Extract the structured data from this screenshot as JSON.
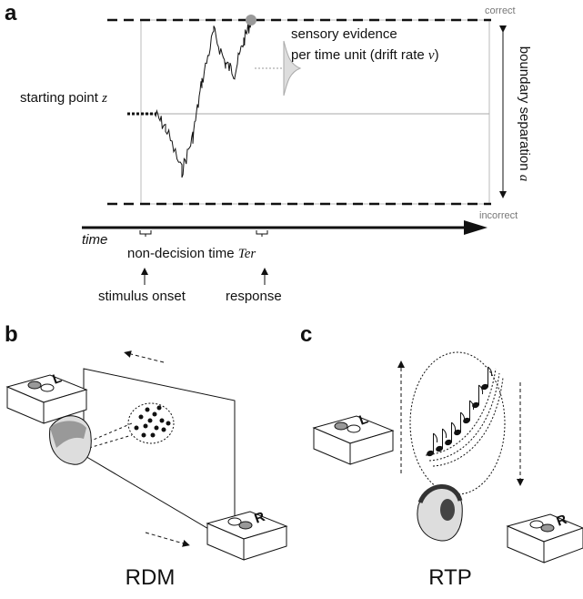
{
  "panel_a": {
    "label": "a",
    "upper_boundary": "correct",
    "lower_boundary": "incorrect",
    "starting_point": {
      "text": "starting point",
      "symbol": "z"
    },
    "drift": {
      "line1": "sensory evidence",
      "line2": "per time unit (drift rate",
      "symbol": "v",
      "close": ")"
    },
    "boundary_separation": {
      "text": "boundary separation",
      "symbol": "a"
    },
    "time_axis": "time",
    "non_decision": {
      "text": "non-decision time",
      "symbol": "Ter"
    },
    "stimulus_onset": "stimulus onset",
    "response": "response"
  },
  "panel_b": {
    "label": "b",
    "caption": "RDM",
    "left_key": "L",
    "right_key": "R"
  },
  "panel_c": {
    "label": "c",
    "caption": "RTP",
    "left_key": "L",
    "right_key": "R"
  }
}
